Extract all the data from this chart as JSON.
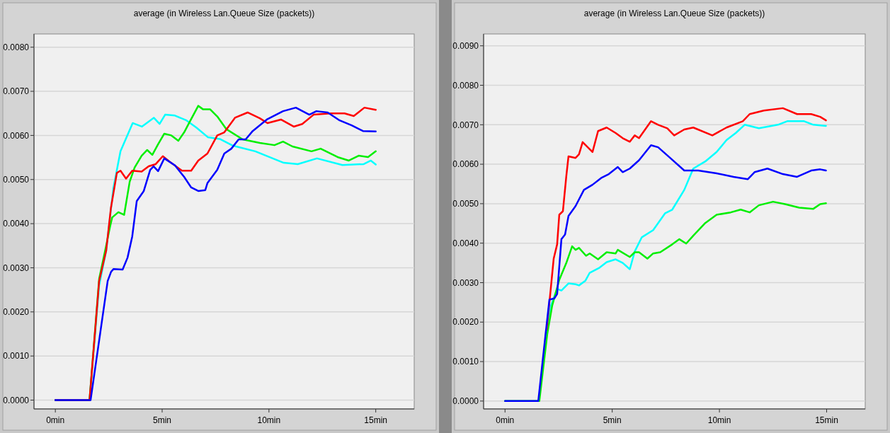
{
  "chart_data": [
    {
      "type": "line",
      "title": "average (in Wireless Lan.Queue Size (packets))",
      "xlim": [
        -1,
        16.8
      ],
      "xticks": [
        {
          "value": 0,
          "label": "0min"
        },
        {
          "value": 5,
          "label": "5min"
        },
        {
          "value": 10,
          "label": "10min"
        },
        {
          "value": 15,
          "label": "15min"
        }
      ],
      "ylim": [
        -0.0002,
        0.0083
      ],
      "yticks": [
        {
          "value": 0,
          "label": "0.0000"
        },
        {
          "value": 0.001,
          "label": "0.0010"
        },
        {
          "value": 0.002,
          "label": "0.0020"
        },
        {
          "value": 0.003,
          "label": "0.0030"
        },
        {
          "value": 0.004,
          "label": "0.0040"
        },
        {
          "value": 0.005,
          "label": "0.0050"
        },
        {
          "value": 0.006,
          "label": "0.0060"
        },
        {
          "value": 0.007,
          "label": "0.0070"
        },
        {
          "value": 0.008,
          "label": "0.0080"
        }
      ],
      "grid": "y",
      "line_style": "solid",
      "series": [
        {
          "color": "#00ffff",
          "x": [
            0,
            1.6,
            2.05,
            2.38,
            2.72,
            3.05,
            3.62,
            4.05,
            4.61,
            4.88,
            5.14,
            5.6,
            6.14,
            6.6,
            7.14,
            7.7,
            8.26,
            8.46,
            9.36,
            10.69,
            11.35,
            12.25,
            13.44,
            14.44,
            14.77,
            15.0
          ],
          "values": [
            0,
            0,
            0.0026,
            0.00339,
            0.00482,
            0.00564,
            0.00628,
            0.0062,
            0.0064,
            0.00626,
            0.00647,
            0.00645,
            0.00634,
            0.00618,
            0.00596,
            0.00592,
            0.00578,
            0.00575,
            0.00564,
            0.00538,
            0.00535,
            0.00548,
            0.00533,
            0.00535,
            0.00543,
            0.00534
          ]
        },
        {
          "color": "#00ee00",
          "x": [
            0,
            1.6,
            2.05,
            2.33,
            2.56,
            2.66,
            2.95,
            3.22,
            3.48,
            3.71,
            4.04,
            4.3,
            4.54,
            4.81,
            5.1,
            5.43,
            5.76,
            6.03,
            6.26,
            6.69,
            6.92,
            7.25,
            7.58,
            8.01,
            8.77,
            9.57,
            10.26,
            10.66,
            11.1,
            11.99,
            12.42,
            13.21,
            13.74,
            14.2,
            14.64,
            15.0
          ],
          "values": [
            0,
            0,
            0.00275,
            0.00339,
            0.00393,
            0.00414,
            0.00426,
            0.0042,
            0.00495,
            0.00527,
            0.00554,
            0.00567,
            0.00556,
            0.0058,
            0.00604,
            0.006,
            0.00588,
            0.00607,
            0.00628,
            0.00667,
            0.00659,
            0.00659,
            0.00643,
            0.00614,
            0.00591,
            0.00583,
            0.00578,
            0.00586,
            0.00575,
            0.00564,
            0.0057,
            0.00551,
            0.00543,
            0.00554,
            0.00551,
            0.00564
          ]
        },
        {
          "color": "#ff0000",
          "x": [
            0,
            1.6,
            2.05,
            2.38,
            2.6,
            2.88,
            3.05,
            3.31,
            3.6,
            4.04,
            4.37,
            4.7,
            5.03,
            5.36,
            5.93,
            6.36,
            6.69,
            7.12,
            7.58,
            7.91,
            8.41,
            9.0,
            9.57,
            9.93,
            10.56,
            11.16,
            11.56,
            12.09,
            12.88,
            13.54,
            13.97,
            14.47,
            15.0
          ],
          "values": [
            0,
            0,
            0.0027,
            0.00339,
            0.00435,
            0.00515,
            0.0052,
            0.00502,
            0.0052,
            0.00518,
            0.0053,
            0.00535,
            0.00553,
            0.0054,
            0.0052,
            0.0052,
            0.00543,
            0.00559,
            0.006,
            0.00607,
            0.0064,
            0.00652,
            0.00639,
            0.00628,
            0.00636,
            0.0062,
            0.00626,
            0.00647,
            0.0065,
            0.0065,
            0.00644,
            0.00663,
            0.00658
          ]
        },
        {
          "color": "#0000ff",
          "x": [
            0,
            1.65,
            2.45,
            2.61,
            2.72,
            3.15,
            3.38,
            3.6,
            3.81,
            4.14,
            4.44,
            4.6,
            4.81,
            5.1,
            5.6,
            6.03,
            6.36,
            6.69,
            7.02,
            7.12,
            7.58,
            7.91,
            8.24,
            8.58,
            8.91,
            9.24,
            9.9,
            10.66,
            11.26,
            11.89,
            12.22,
            12.75,
            13.31,
            13.87,
            14.4,
            15.0
          ],
          "values": [
            0,
            0,
            0.0027,
            0.00291,
            0.00297,
            0.00296,
            0.00323,
            0.00371,
            0.00451,
            0.00474,
            0.00522,
            0.0053,
            0.00519,
            0.00548,
            0.00532,
            0.00506,
            0.00482,
            0.00474,
            0.00476,
            0.00492,
            0.00522,
            0.00559,
            0.0057,
            0.00591,
            0.00591,
            0.0061,
            0.00636,
            0.00655,
            0.00663,
            0.00647,
            0.00655,
            0.00652,
            0.00634,
            0.00623,
            0.0061,
            0.00609
          ]
        }
      ]
    },
    {
      "type": "line",
      "title": "average (in Wireless Lan.Queue Size (packets))",
      "xlim": [
        -1,
        16.8
      ],
      "xticks": [
        {
          "value": 0,
          "label": "0min"
        },
        {
          "value": 5,
          "label": "5min"
        },
        {
          "value": 10,
          "label": "10min"
        },
        {
          "value": 15,
          "label": "15min"
        }
      ],
      "ylim": [
        -0.0002,
        0.0093
      ],
      "yticks": [
        {
          "value": 0,
          "label": "0.0000"
        },
        {
          "value": 0.001,
          "label": "0.0010"
        },
        {
          "value": 0.002,
          "label": "0.0020"
        },
        {
          "value": 0.003,
          "label": "0.0030"
        },
        {
          "value": 0.004,
          "label": "0.0040"
        },
        {
          "value": 0.005,
          "label": "0.0050"
        },
        {
          "value": 0.006,
          "label": "0.0060"
        },
        {
          "value": 0.007,
          "label": "0.0070"
        },
        {
          "value": 0.008,
          "label": "0.0080"
        },
        {
          "value": 0.009,
          "label": "0.0090"
        }
      ],
      "grid": "y",
      "line_style": "solid",
      "series": [
        {
          "color": "#00ffff",
          "x": [
            1.88,
            2.14,
            2.43,
            2.63,
            2.96,
            3.29,
            3.45,
            3.75,
            3.95,
            4.41,
            4.74,
            5.16,
            5.49,
            5.82,
            6.05,
            6.38,
            6.91,
            7.47,
            7.8,
            8.36,
            8.78,
            9.34,
            9.87,
            10.33,
            10.76,
            11.18,
            11.84,
            12.73,
            13.16,
            13.95,
            14.38,
            14.97
          ],
          "values": [
            0.00162,
            0.00242,
            0.00284,
            0.0028,
            0.00298,
            0.00296,
            0.00293,
            0.00305,
            0.00325,
            0.00338,
            0.00352,
            0.00359,
            0.0035,
            0.00334,
            0.00379,
            0.00415,
            0.00433,
            0.00476,
            0.00485,
            0.00535,
            0.00589,
            0.00607,
            0.00631,
            0.00661,
            0.00679,
            0.007,
            0.00691,
            0.007,
            0.00709,
            0.00709,
            0.007,
            0.00697
          ]
        },
        {
          "color": "#00ee00",
          "x": [
            0,
            1.6,
            1.97,
            2.2,
            2.53,
            2.86,
            3.13,
            3.29,
            3.45,
            3.78,
            3.95,
            4.34,
            4.74,
            5.16,
            5.26,
            5.82,
            6.05,
            6.25,
            6.64,
            6.91,
            7.24,
            7.8,
            8.13,
            8.45,
            8.78,
            9.34,
            9.87,
            10.53,
            10.99,
            11.41,
            11.84,
            12.5,
            13.06,
            13.72,
            14.38,
            14.7,
            14.97
          ],
          "values": [
            0,
            0,
            0.0017,
            0.00242,
            0.00307,
            0.0035,
            0.00392,
            0.00383,
            0.00388,
            0.00368,
            0.00374,
            0.00359,
            0.00377,
            0.00374,
            0.00383,
            0.00365,
            0.00377,
            0.00377,
            0.00361,
            0.00374,
            0.00377,
            0.00397,
            0.0041,
            0.00399,
            0.00419,
            0.00451,
            0.00472,
            0.00478,
            0.00485,
            0.00478,
            0.00496,
            0.00505,
            0.00499,
            0.0049,
            0.00487,
            0.00499,
            0.00501
          ]
        },
        {
          "color": "#ff0000",
          "x": [
            1.94,
            2.1,
            2.27,
            2.43,
            2.53,
            2.7,
            2.86,
            2.96,
            3.29,
            3.45,
            3.62,
            4.08,
            4.34,
            4.74,
            5.16,
            5.49,
            5.82,
            6.05,
            6.25,
            6.81,
            7.14,
            7.57,
            7.89,
            8.36,
            8.78,
            9.67,
            10.33,
            11.09,
            11.41,
            12.07,
            12.96,
            13.62,
            14.28,
            14.7,
            14.97
          ],
          "values": [
            0.00181,
            0.00266,
            0.00361,
            0.00397,
            0.00472,
            0.00481,
            0.00571,
            0.0062,
            0.00616,
            0.00625,
            0.00656,
            0.00631,
            0.00684,
            0.00693,
            0.00679,
            0.00666,
            0.00657,
            0.00673,
            0.00666,
            0.00709,
            0.007,
            0.00691,
            0.00673,
            0.00688,
            0.00693,
            0.00673,
            0.00693,
            0.00709,
            0.00727,
            0.00736,
            0.00742,
            0.00727,
            0.00727,
            0.0072,
            0.00711
          ]
        },
        {
          "color": "#0000ff",
          "x": [
            0,
            1.55,
            1.88,
            2.07,
            2.3,
            2.43,
            2.63,
            2.8,
            2.96,
            3.29,
            3.68,
            4.08,
            4.51,
            4.84,
            5.26,
            5.49,
            5.82,
            6.25,
            6.81,
            7.14,
            7.7,
            8.36,
            9.01,
            9.87,
            10.66,
            11.32,
            11.64,
            12.24,
            12.96,
            13.62,
            14.28,
            14.7,
            14.97
          ],
          "values": [
            0,
            0,
            0.00164,
            0.00257,
            0.0026,
            0.00271,
            0.0041,
            0.00422,
            0.00469,
            0.00494,
            0.00535,
            0.00548,
            0.00566,
            0.00575,
            0.00593,
            0.0058,
            0.00589,
            0.0061,
            0.00648,
            0.00643,
            0.00616,
            0.00584,
            0.00584,
            0.00577,
            0.00568,
            0.00562,
            0.0058,
            0.00589,
            0.00575,
            0.00568,
            0.00584,
            0.00587,
            0.00584
          ]
        }
      ]
    }
  ]
}
